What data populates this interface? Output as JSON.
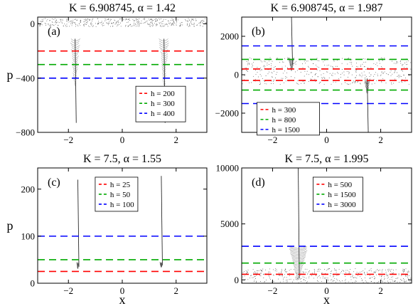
{
  "chart_data": [
    {
      "type": "scatter",
      "panel_label": "(a)",
      "title": "K = 6.908745, α = 1.42",
      "xlabel": "",
      "ylabel": "p",
      "xlim": [
        -3.1416,
        3.1416
      ],
      "ylim": [
        -800,
        50
      ],
      "xticks": [
        -2,
        0,
        2
      ],
      "xtick_labels": [
        "−2",
        "0",
        "2"
      ],
      "yticks": [
        0,
        -400,
        -800
      ],
      "ytick_labels": [
        "0",
        "−400",
        "−800"
      ],
      "legend_position": "lower-right",
      "series": [
        {
          "name": "h = 200",
          "type": "hline",
          "y": -200,
          "color": "#ff0000"
        },
        {
          "name": "h = 300",
          "type": "hline",
          "y": -300,
          "color": "#00aa00"
        },
        {
          "name": "h = 400",
          "type": "hline",
          "y": -400,
          "color": "#0000ff"
        }
      ],
      "trajectories": [
        {
          "x": -1.75,
          "y_top": -110,
          "y_bottom": -730,
          "fan_top": -110,
          "fan_bottom": -440,
          "fan_width": 0.35
        },
        {
          "x": 1.55,
          "y_top": -110,
          "y_bottom": -730,
          "fan_top": -110,
          "fan_bottom": -440,
          "fan_width": 0.35
        }
      ],
      "scatter_bands": [
        [
          -20,
          40
        ]
      ]
    },
    {
      "type": "scatter",
      "panel_label": "(b)",
      "title": "K = 6.908745, α = 1.987",
      "xlabel": "",
      "ylabel": "",
      "xlim": [
        -3.1416,
        3.1416
      ],
      "ylim": [
        -3000,
        3000
      ],
      "xticks": [
        -2,
        0,
        2
      ],
      "xtick_labels": [
        "−2",
        "0",
        "2"
      ],
      "yticks": [
        2000,
        0,
        -2000
      ],
      "ytick_labels": [
        "2000",
        "0",
        "−2000"
      ],
      "legend_position": "lower-left",
      "series": [
        {
          "name": "h = 300",
          "type": "hline",
          "y": 300,
          "color": "#ff0000"
        },
        {
          "name": "h = 800",
          "type": "hline",
          "y": 800,
          "color": "#00aa00"
        },
        {
          "name": "h = 1500",
          "type": "hline",
          "y": 1500,
          "color": "#0000ff"
        }
      ],
      "mirror_lines": true,
      "trajectories": [
        {
          "x": -1.3,
          "y_top": 3000,
          "y_bottom": 500,
          "fan_top": 900,
          "fan_bottom": 300,
          "fan_width": 0.2
        },
        {
          "x": 1.5,
          "y_top": -200,
          "y_bottom": -3000,
          "fan_top": -200,
          "fan_bottom": -900,
          "fan_width": 0.2
        }
      ],
      "scatter_bands": [
        [
          -500,
          900
        ]
      ]
    },
    {
      "type": "scatter",
      "panel_label": "(c)",
      "title": "K = 7.5, α = 1.55",
      "xlabel": "x",
      "ylabel": "p",
      "xlim": [
        -3.1416,
        3.1416
      ],
      "ylim": [
        0,
        245
      ],
      "xticks": [
        -2,
        0,
        2
      ],
      "xtick_labels": [
        "−2",
        "0",
        "2"
      ],
      "yticks": [
        0,
        100,
        200
      ],
      "ytick_labels": [
        "0",
        "100",
        "200"
      ],
      "legend_position": "upper-left",
      "series": [
        {
          "name": "h = 25",
          "type": "hline",
          "y": 25,
          "color": "#ff0000"
        },
        {
          "name": "h = 50",
          "type": "hline",
          "y": 50,
          "color": "#00aa00"
        },
        {
          "name": "h = 100",
          "type": "hline",
          "y": 100,
          "color": "#0000ff"
        }
      ],
      "trajectories": [
        {
          "x": -1.65,
          "y_top": 220,
          "y_bottom": 35,
          "fan_top": 45,
          "fan_bottom": 35,
          "fan_width": 0.05
        },
        {
          "x": 1.45,
          "y_top": 228,
          "y_bottom": 38,
          "fan_top": 45,
          "fan_bottom": 38,
          "fan_width": 0.08
        }
      ],
      "scatter_bands": []
    },
    {
      "type": "scatter",
      "panel_label": "(d)",
      "title": "K = 7.5, α = 1.995",
      "xlabel": "x",
      "ylabel": "",
      "xlim": [
        -3.1416,
        3.1416
      ],
      "ylim": [
        -300,
        10000
      ],
      "xticks": [
        -2,
        0,
        2
      ],
      "xtick_labels": [
        "−2",
        "0",
        "2"
      ],
      "yticks": [
        0,
        5000,
        10000
      ],
      "ytick_labels": [
        "0",
        "5000",
        "10000"
      ],
      "legend_position": "upper-right",
      "series": [
        {
          "name": "h = 500",
          "type": "hline",
          "y": 500,
          "color": "#ff0000"
        },
        {
          "name": "h = 1500",
          "type": "hline",
          "y": 1500,
          "color": "#00aa00"
        },
        {
          "name": "h = 3000",
          "type": "hline",
          "y": 3000,
          "color": "#0000ff"
        }
      ],
      "trajectories": [
        {
          "x": -1.05,
          "y_top": 10000,
          "y_bottom": 200,
          "fan_top": 3000,
          "fan_bottom": 200,
          "fan_width": 0.7
        }
      ],
      "scatter_bands": [
        [
          -300,
          1000
        ]
      ]
    }
  ]
}
